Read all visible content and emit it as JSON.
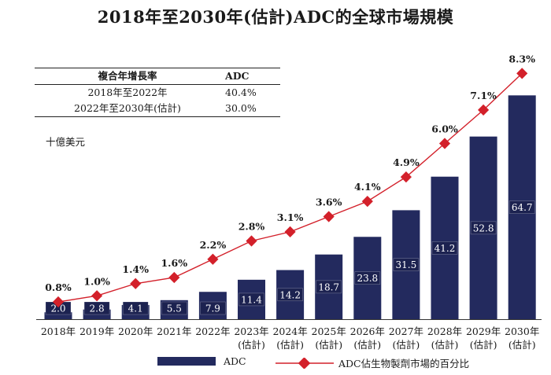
{
  "title": "2018年至2030年(估計)ADC的全球市場規模",
  "cagr_table": {
    "header": [
      "複合年增長率",
      "ADC"
    ],
    "rows": [
      [
        "2018年至2022年",
        "40.4%"
      ],
      [
        "2022年至2030年(估計)",
        "30.0%"
      ]
    ]
  },
  "unit_label": "十億美元",
  "colors": {
    "bar": "#232a5e",
    "line": "#d3202a",
    "bar_label_bg": "#1c2250"
  },
  "chart_data": {
    "type": "bar",
    "title": "2018年至2030年(估計)ADC的全球市場規模",
    "categories": [
      "2018年",
      "2019年",
      "2020年",
      "2021年",
      "2022年",
      "2023年",
      "2024年",
      "2025年",
      "2026年",
      "2027年",
      "2028年",
      "2029年",
      "2030年"
    ],
    "category_sublabels": [
      "",
      "",
      "",
      "",
      "",
      "(估計)",
      "(估計)",
      "(估計)",
      "(估計)",
      "(估計)",
      "(估計)",
      "(估計)",
      "(估計)"
    ],
    "series": [
      {
        "name": "ADC",
        "kind": "bar",
        "values": [
          2.0,
          2.8,
          4.1,
          5.5,
          7.9,
          11.4,
          14.2,
          18.7,
          23.8,
          31.5,
          41.2,
          52.8,
          64.7
        ],
        "labels": [
          "2.0",
          "2.8",
          "4.1",
          "5.5",
          "7.9",
          "11.4",
          "14.2",
          "18.7",
          "23.8",
          "31.5",
          "41.2",
          "52.8",
          "64.7"
        ]
      },
      {
        "name": "ADC佔生物製劑市場的百分比",
        "kind": "line",
        "values": [
          0.8,
          1.0,
          1.4,
          1.6,
          2.2,
          2.8,
          3.1,
          3.6,
          4.1,
          4.9,
          6.0,
          7.1,
          8.3
        ],
        "labels": [
          "0.8%",
          "1.0%",
          "1.4%",
          "1.6%",
          "2.2%",
          "2.8%",
          "3.1%",
          "3.6%",
          "4.1%",
          "4.9%",
          "6.0%",
          "7.1%",
          "8.3%"
        ]
      }
    ],
    "ylabel": "十億美元",
    "legend_position": "bottom",
    "grid": false
  }
}
